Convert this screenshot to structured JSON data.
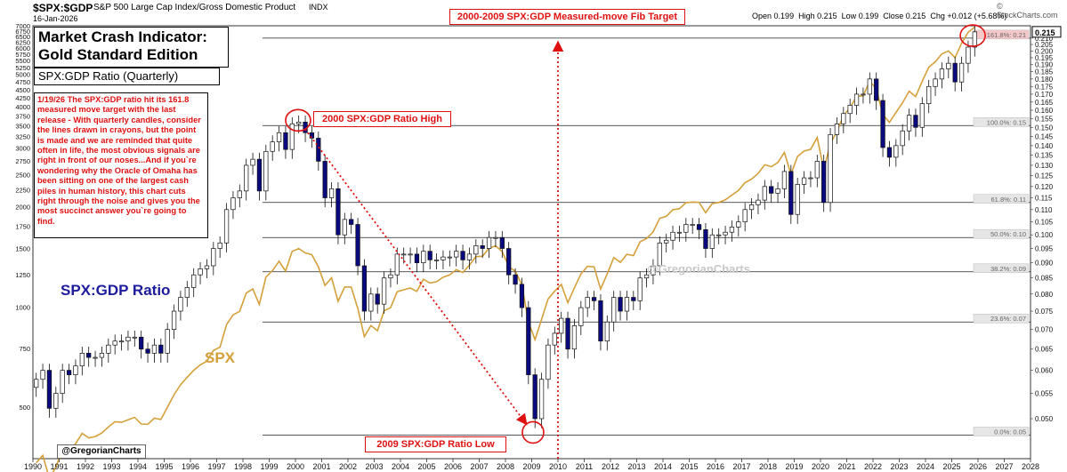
{
  "header": {
    "symbol": "$SPX:$GDP",
    "description": "S&P 500 Large Cap Index/Gross Domestic Product",
    "exchange": "INDX",
    "date": "16-Jan-2026",
    "ohlc": {
      "open_label": "Open",
      "open": "0.199",
      "high_label": "High",
      "high": "0.215",
      "low_label": "Low",
      "low": "0.199",
      "close_label": "Close",
      "close": "0.215",
      "chg_label": "Chg",
      "chg": "+0.012 (+5.68%)"
    },
    "watermark": "© StockCharts.com"
  },
  "titles": {
    "main_line1": "Market Crash Indicator:",
    "main_line2": "Gold Standard Edition",
    "subtitle": "SPX:GDP Ratio (Quarterly)",
    "commentary": "1/19/26 The SPX:GDP ratio hit its 161.8 measured move target with the last release - With quarterly candles, consider the lines drawn in crayons, but the point is made and we are reminded that quite often in life, the most obvious signals are right in front of our noses...And if you`re wondering why the Oracle of Omaha has been sitting on one of the largest cash piles in human history, this chart cuts right through the noise and gives you the most succinct answer you`re going to find.",
    "spx_gdp_label": "SPX:GDP Ratio",
    "spx_label": "SPX",
    "handle_watermark": "@GregorianCharts",
    "handle_box": "@GregorianCharts"
  },
  "annotations": {
    "target": "2000-2009 SPX:GDP Measured-move Fib Target",
    "high": "2000 SPX:GDP Ratio High",
    "low": "2009 SPX:GDP Ratio Low"
  },
  "colors": {
    "candle_up": "#1a1a8c",
    "candle_down": "#0a0a80",
    "spx_line": "#d4a03a",
    "annotation_red": "#e01010",
    "fib_line": "#222222",
    "last_value": "#000000"
  },
  "chart_data": {
    "type": "candlestick",
    "title": "SPX:GDP Ratio (Quarterly)",
    "x_axis": {
      "type": "date",
      "range": [
        "1990-01-01",
        "2028-01-01"
      ],
      "tick_labels": [
        "1990",
        "1991",
        "1992",
        "1993",
        "1994",
        "1995",
        "1996",
        "1997",
        "1998",
        "1999",
        "2000",
        "2001",
        "2002",
        "2003",
        "2004",
        "2005",
        "2006",
        "2007",
        "2008",
        "2009",
        "2010",
        "2011",
        "2012",
        "2013",
        "2014",
        "2015",
        "2016",
        "2017",
        "2018",
        "2019",
        "2020",
        "2021",
        "2022",
        "2023",
        "2024",
        "2025",
        "2026",
        "2027",
        "2028"
      ]
    },
    "y_axis_right": {
      "scale": "log",
      "range": [
        0.043,
        0.22
      ],
      "tick_labels": [
        "0.210",
        "0.205",
        "0.200",
        "0.195",
        "0.190",
        "0.185",
        "0.180",
        "0.175",
        "0.170",
        "0.165",
        "0.160",
        "0.155",
        "0.150",
        "0.145",
        "0.140",
        "0.135",
        "0.130",
        "0.125",
        "0.120",
        "0.115",
        "0.110",
        "0.105",
        "0.100",
        "0.095",
        "0.090",
        "0.085",
        "0.080",
        "0.075",
        "0.070",
        "0.065",
        "0.060",
        "0.055",
        "0.050"
      ],
      "last_value": "0.215"
    },
    "y_axis_left": {
      "scale": "log",
      "range": [
        350,
        7000
      ],
      "tick_labels": [
        "7000",
        "6750",
        "6500",
        "6250",
        "6000",
        "5750",
        "5500",
        "5250",
        "5000",
        "4750",
        "4500",
        "4250",
        "4000",
        "3750",
        "3500",
        "3250",
        "3000",
        "2750",
        "2500",
        "2250",
        "2000",
        "1750",
        "1500",
        "1250",
        "1000",
        "750",
        "500"
      ]
    },
    "fib_levels": [
      {
        "label": "161.8%: 0.21",
        "value": 0.21
      },
      {
        "label": "100.0%: 0.15",
        "value": 0.151
      },
      {
        "label": "61.8%: 0.11",
        "value": 0.113
      },
      {
        "label": "50.0%: 0.10",
        "value": 0.099
      },
      {
        "label": "38.2%: 0.09",
        "value": 0.087
      },
      {
        "label": "23.6%: 0.07",
        "value": 0.072
      },
      {
        "label": "0.0%: 0.05",
        "value": 0.047
      }
    ],
    "ratio_quarterly_close": [
      [
        1990.0,
        0.058
      ],
      [
        1990.25,
        0.06
      ],
      [
        1990.5,
        0.052
      ],
      [
        1990.75,
        0.055
      ],
      [
        1991.0,
        0.06
      ],
      [
        1991.25,
        0.059
      ],
      [
        1991.5,
        0.061
      ],
      [
        1991.75,
        0.064
      ],
      [
        1992.0,
        0.063
      ],
      [
        1992.25,
        0.063
      ],
      [
        1992.5,
        0.064
      ],
      [
        1992.75,
        0.066
      ],
      [
        1993.0,
        0.067
      ],
      [
        1993.25,
        0.067
      ],
      [
        1993.5,
        0.068
      ],
      [
        1993.75,
        0.068
      ],
      [
        1994.0,
        0.065
      ],
      [
        1994.25,
        0.064
      ],
      [
        1994.5,
        0.066
      ],
      [
        1994.75,
        0.064
      ],
      [
        1995.0,
        0.07
      ],
      [
        1995.25,
        0.075
      ],
      [
        1995.5,
        0.079
      ],
      [
        1995.75,
        0.082
      ],
      [
        1996.0,
        0.086
      ],
      [
        1996.25,
        0.088
      ],
      [
        1996.5,
        0.089
      ],
      [
        1996.75,
        0.095
      ],
      [
        1997.0,
        0.097
      ],
      [
        1997.25,
        0.11
      ],
      [
        1997.5,
        0.115
      ],
      [
        1997.75,
        0.118
      ],
      [
        1998.0,
        0.13
      ],
      [
        1998.25,
        0.133
      ],
      [
        1998.5,
        0.118
      ],
      [
        1998.75,
        0.137
      ],
      [
        1999.0,
        0.142
      ],
      [
        1999.25,
        0.147
      ],
      [
        1999.5,
        0.138
      ],
      [
        1999.75,
        0.152
      ],
      [
        2000.0,
        0.153
      ],
      [
        2000.25,
        0.147
      ],
      [
        2000.5,
        0.144
      ],
      [
        2000.75,
        0.132
      ],
      [
        2001.0,
        0.115
      ],
      [
        2001.25,
        0.119
      ],
      [
        2001.5,
        0.1
      ],
      [
        2001.75,
        0.106
      ],
      [
        2002.0,
        0.104
      ],
      [
        2002.25,
        0.089
      ],
      [
        2002.5,
        0.075
      ],
      [
        2002.75,
        0.08
      ],
      [
        2003.0,
        0.077
      ],
      [
        2003.25,
        0.085
      ],
      [
        2003.5,
        0.086
      ],
      [
        2003.75,
        0.093
      ],
      [
        2004.0,
        0.093
      ],
      [
        2004.25,
        0.093
      ],
      [
        2004.5,
        0.09
      ],
      [
        2004.75,
        0.094
      ],
      [
        2005.0,
        0.091
      ],
      [
        2005.25,
        0.091
      ],
      [
        2005.5,
        0.092
      ],
      [
        2005.75,
        0.092
      ],
      [
        2006.0,
        0.094
      ],
      [
        2006.25,
        0.091
      ],
      [
        2006.5,
        0.093
      ],
      [
        2006.75,
        0.096
      ],
      [
        2007.0,
        0.095
      ],
      [
        2007.25,
        0.099
      ],
      [
        2007.5,
        0.099
      ],
      [
        2007.75,
        0.095
      ],
      [
        2008.0,
        0.086
      ],
      [
        2008.25,
        0.083
      ],
      [
        2008.5,
        0.076
      ],
      [
        2008.75,
        0.059
      ],
      [
        2009.0,
        0.05
      ],
      [
        2009.25,
        0.058
      ],
      [
        2009.5,
        0.066
      ],
      [
        2009.75,
        0.069
      ],
      [
        2010.0,
        0.073
      ],
      [
        2010.25,
        0.065
      ],
      [
        2010.5,
        0.071
      ],
      [
        2010.75,
        0.076
      ],
      [
        2011.0,
        0.079
      ],
      [
        2011.25,
        0.078
      ],
      [
        2011.5,
        0.067
      ],
      [
        2011.75,
        0.072
      ],
      [
        2012.0,
        0.079
      ],
      [
        2012.25,
        0.075
      ],
      [
        2012.5,
        0.079
      ],
      [
        2012.75,
        0.078
      ],
      [
        2013.0,
        0.085
      ],
      [
        2013.25,
        0.086
      ],
      [
        2013.5,
        0.089
      ],
      [
        2013.75,
        0.097
      ],
      [
        2014.0,
        0.098
      ],
      [
        2014.25,
        0.101
      ],
      [
        2014.5,
        0.101
      ],
      [
        2014.75,
        0.104
      ],
      [
        2015.0,
        0.104
      ],
      [
        2015.25,
        0.102
      ],
      [
        2015.5,
        0.095
      ],
      [
        2015.75,
        0.1
      ],
      [
        2016.0,
        0.1
      ],
      [
        2016.25,
        0.101
      ],
      [
        2016.5,
        0.103
      ],
      [
        2016.75,
        0.105
      ],
      [
        2017.0,
        0.11
      ],
      [
        2017.25,
        0.112
      ],
      [
        2017.5,
        0.114
      ],
      [
        2017.75,
        0.12
      ],
      [
        2018.0,
        0.117
      ],
      [
        2018.25,
        0.119
      ],
      [
        2018.5,
        0.127
      ],
      [
        2018.75,
        0.108
      ],
      [
        2019.0,
        0.121
      ],
      [
        2019.25,
        0.124
      ],
      [
        2019.5,
        0.124
      ],
      [
        2019.75,
        0.132
      ],
      [
        2020.0,
        0.113
      ],
      [
        2020.25,
        0.146
      ],
      [
        2020.5,
        0.152
      ],
      [
        2020.75,
        0.158
      ],
      [
        2021.0,
        0.163
      ],
      [
        2021.25,
        0.17
      ],
      [
        2021.5,
        0.17
      ],
      [
        2021.75,
        0.18
      ],
      [
        2022.0,
        0.166
      ],
      [
        2022.25,
        0.139
      ],
      [
        2022.5,
        0.134
      ],
      [
        2022.75,
        0.14
      ],
      [
        2023.0,
        0.148
      ],
      [
        2023.25,
        0.157
      ],
      [
        2023.5,
        0.15
      ],
      [
        2023.75,
        0.164
      ],
      [
        2024.0,
        0.175
      ],
      [
        2024.25,
        0.18
      ],
      [
        2024.5,
        0.187
      ],
      [
        2024.75,
        0.191
      ],
      [
        2025.0,
        0.178
      ],
      [
        2025.25,
        0.191
      ],
      [
        2025.5,
        0.203
      ],
      [
        2025.75,
        0.215
      ]
    ],
    "spx_quarterly_close": [
      [
        1990.0,
        340
      ],
      [
        1990.25,
        358
      ],
      [
        1990.5,
        306
      ],
      [
        1990.75,
        330
      ],
      [
        1991.0,
        375
      ],
      [
        1991.25,
        371
      ],
      [
        1991.5,
        388
      ],
      [
        1991.75,
        417
      ],
      [
        1992.0,
        404
      ],
      [
        1992.25,
        408
      ],
      [
        1992.5,
        418
      ],
      [
        1992.75,
        436
      ],
      [
        1993.0,
        452
      ],
      [
        1993.25,
        450
      ],
      [
        1993.5,
        458
      ],
      [
        1993.75,
        466
      ],
      [
        1994.0,
        445
      ],
      [
        1994.25,
        444
      ],
      [
        1994.5,
        463
      ],
      [
        1994.75,
        459
      ],
      [
        1995.0,
        500
      ],
      [
        1995.25,
        545
      ],
      [
        1995.5,
        584
      ],
      [
        1995.75,
        615
      ],
      [
        1996.0,
        645
      ],
      [
        1996.25,
        670
      ],
      [
        1996.5,
        687
      ],
      [
        1996.75,
        740
      ],
      [
        1997.0,
        757
      ],
      [
        1997.25,
        885
      ],
      [
        1997.5,
        947
      ],
      [
        1997.75,
        970
      ],
      [
        1998.0,
        1101
      ],
      [
        1998.25,
        1133
      ],
      [
        1998.5,
        1017
      ],
      [
        1998.75,
        1229
      ],
      [
        1999.0,
        1286
      ],
      [
        1999.25,
        1372
      ],
      [
        1999.5,
        1282
      ],
      [
        1999.75,
        1469
      ],
      [
        2000.0,
        1498
      ],
      [
        2000.25,
        1454
      ],
      [
        2000.5,
        1436
      ],
      [
        2000.75,
        1320
      ],
      [
        2001.0,
        1160
      ],
      [
        2001.25,
        1224
      ],
      [
        2001.5,
        1040
      ],
      [
        2001.75,
        1148
      ],
      [
        2002.0,
        1147
      ],
      [
        2002.25,
        989
      ],
      [
        2002.5,
        815
      ],
      [
        2002.75,
        879
      ],
      [
        2003.0,
        848
      ],
      [
        2003.25,
        974
      ],
      [
        2003.5,
        995
      ],
      [
        2003.75,
        1111
      ],
      [
        2004.0,
        1126
      ],
      [
        2004.25,
        1140
      ],
      [
        2004.5,
        1114
      ],
      [
        2004.75,
        1211
      ],
      [
        2005.0,
        1180
      ],
      [
        2005.25,
        1191
      ],
      [
        2005.5,
        1228
      ],
      [
        2005.75,
        1248
      ],
      [
        2006.0,
        1294
      ],
      [
        2006.25,
        1270
      ],
      [
        2006.5,
        1335
      ],
      [
        2006.75,
        1418
      ],
      [
        2007.0,
        1420
      ],
      [
        2007.25,
        1503
      ],
      [
        2007.5,
        1526
      ],
      [
        2007.75,
        1468
      ],
      [
        2008.0,
        1322
      ],
      [
        2008.25,
        1280
      ],
      [
        2008.5,
        1166
      ],
      [
        2008.75,
        903
      ],
      [
        2009.0,
        797
      ],
      [
        2009.25,
        919
      ],
      [
        2009.5,
        1057
      ],
      [
        2009.75,
        1115
      ],
      [
        2010.0,
        1169
      ],
      [
        2010.25,
        1030
      ],
      [
        2010.5,
        1141
      ],
      [
        2010.75,
        1257
      ],
      [
        2011.0,
        1325
      ],
      [
        2011.25,
        1320
      ],
      [
        2011.5,
        1131
      ],
      [
        2011.75,
        1257
      ],
      [
        2012.0,
        1408
      ],
      [
        2012.25,
        1362
      ],
      [
        2012.5,
        1440
      ],
      [
        2012.75,
        1426
      ],
      [
        2013.0,
        1569
      ],
      [
        2013.25,
        1606
      ],
      [
        2013.5,
        1681
      ],
      [
        2013.75,
        1848
      ],
      [
        2014.0,
        1872
      ],
      [
        2014.25,
        1960
      ],
      [
        2014.5,
        1972
      ],
      [
        2014.75,
        2058
      ],
      [
        2015.0,
        2067
      ],
      [
        2015.25,
        2063
      ],
      [
        2015.5,
        1920
      ],
      [
        2015.75,
        2044
      ],
      [
        2016.0,
        2060
      ],
      [
        2016.25,
        2099
      ],
      [
        2016.5,
        2168
      ],
      [
        2016.75,
        2239
      ],
      [
        2017.0,
        2363
      ],
      [
        2017.25,
        2423
      ],
      [
        2017.5,
        2519
      ],
      [
        2017.75,
        2674
      ],
      [
        2018.0,
        2641
      ],
      [
        2018.25,
        2718
      ],
      [
        2018.5,
        2914
      ],
      [
        2018.75,
        2507
      ],
      [
        2019.0,
        2834
      ],
      [
        2019.25,
        2942
      ],
      [
        2019.5,
        2977
      ],
      [
        2019.75,
        3231
      ],
      [
        2020.0,
        2585
      ],
      [
        2020.25,
        3100
      ],
      [
        2020.5,
        3363
      ],
      [
        2020.75,
        3756
      ],
      [
        2021.0,
        3973
      ],
      [
        2021.25,
        4298
      ],
      [
        2021.5,
        4308
      ],
      [
        2021.75,
        4766
      ],
      [
        2022.0,
        4530
      ],
      [
        2022.25,
        3785
      ],
      [
        2022.5,
        3586
      ],
      [
        2022.75,
        3840
      ],
      [
        2023.0,
        4109
      ],
      [
        2023.25,
        4450
      ],
      [
        2023.5,
        4288
      ],
      [
        2023.75,
        4770
      ],
      [
        2024.0,
        5254
      ],
      [
        2024.25,
        5460
      ],
      [
        2024.5,
        5762
      ],
      [
        2024.75,
        5882
      ],
      [
        2025.0,
        5612
      ],
      [
        2025.25,
        6205
      ],
      [
        2025.5,
        6688
      ],
      [
        2025.75,
        6940
      ]
    ]
  }
}
